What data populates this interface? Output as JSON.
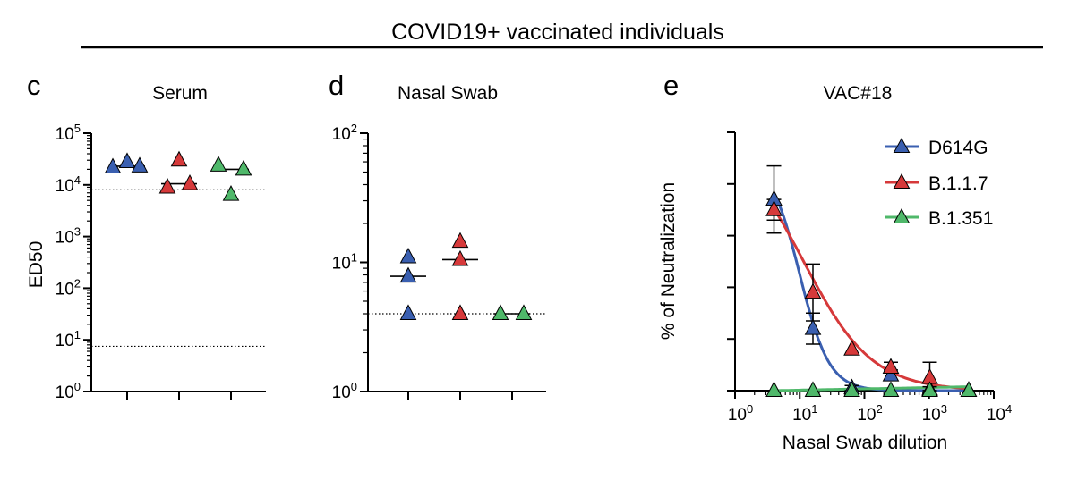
{
  "figure": {
    "header": "COVID19+ vaccinated individuals"
  },
  "colors": {
    "D614G": "#3a5fb0",
    "B.1.1.7": "#d6393a",
    "B.1.351": "#4fb86a",
    "axis": "#000000"
  },
  "chart_data": [
    {
      "panel_label": "c",
      "type": "scatter",
      "title": "Serum",
      "ylabel": "ED50",
      "xlabel": "",
      "yscale": "log",
      "ylim": [
        1,
        100000
      ],
      "yticks": [
        {
          "value": 1,
          "base": "10",
          "exp": "0"
        },
        {
          "value": 10,
          "base": "10",
          "exp": "1"
        },
        {
          "value": 100,
          "base": "10",
          "exp": "2"
        },
        {
          "value": 1000,
          "base": "10",
          "exp": "3"
        },
        {
          "value": 10000,
          "base": "10",
          "exp": "4"
        },
        {
          "value": 100000,
          "base": "10",
          "exp": "5"
        }
      ],
      "categories": [
        "D614G",
        "B.1.1.7",
        "B.1.351"
      ],
      "series": [
        {
          "category": "D614G",
          "values": [
            22000,
            28000,
            23000
          ],
          "median": 23000
        },
        {
          "category": "B.1.1.7",
          "values": [
            9000,
            30000,
            10500
          ],
          "median": 10500
        },
        {
          "category": "B.1.351",
          "values": [
            24000,
            6500,
            20000
          ],
          "median": 20000
        }
      ],
      "reference_lines": [
        8000,
        7.5
      ],
      "legend": false,
      "grid": false
    },
    {
      "panel_label": "d",
      "type": "scatter",
      "title": "Nasal Swab",
      "ylabel": "",
      "xlabel": "",
      "yscale": "log",
      "ylim": [
        1,
        100
      ],
      "yticks": [
        {
          "value": 1,
          "base": "10",
          "exp": "0"
        },
        {
          "value": 10,
          "base": "10",
          "exp": "1"
        },
        {
          "value": 100,
          "base": "10",
          "exp": "2"
        }
      ],
      "categories": [
        "D614G",
        "B.1.1.7",
        "B.1.351"
      ],
      "series": [
        {
          "category": "D614G",
          "values": [
            11,
            7.8,
            4
          ],
          "median": 7.8
        },
        {
          "category": "B.1.1.7",
          "values": [
            14.5,
            10.5,
            4
          ],
          "median": 10.5
        },
        {
          "category": "B.1.351",
          "values": [
            4,
            4
          ],
          "median": 4
        }
      ],
      "reference_lines": [
        4
      ],
      "legend": false,
      "grid": false
    },
    {
      "panel_label": "e",
      "type": "line",
      "title": "VAC#18",
      "xlabel": "Nasal Swab dilution",
      "ylabel": "% of Neutralization",
      "xscale": "log",
      "xlim": [
        1,
        10000
      ],
      "ylim": [
        0,
        100
      ],
      "xticks": [
        {
          "value": 1,
          "base": "10",
          "exp": "0"
        },
        {
          "value": 10,
          "base": "10",
          "exp": "1"
        },
        {
          "value": 100,
          "base": "10",
          "exp": "2"
        },
        {
          "value": 1000,
          "base": "10",
          "exp": "3"
        },
        {
          "value": 10000,
          "base": "10",
          "exp": "4"
        }
      ],
      "yticks": [
        "0",
        "20",
        "40",
        "60",
        "80",
        "100"
      ],
      "x": [
        4,
        16,
        64,
        256,
        1024,
        4096
      ],
      "series": [
        {
          "name": "D614G",
          "values": [
            74,
            24,
            1,
            6,
            0.5,
            0
          ],
          "error": [
            13,
            6,
            1,
            2,
            1,
            0
          ],
          "curve": {
            "top": 90,
            "ic50": 10,
            "hill": 1.9
          }
        },
        {
          "name": "B.1.1.7",
          "values": [
            70,
            38,
            16,
            9,
            5,
            0
          ],
          "error": [
            4,
            11,
            0,
            2,
            6,
            0
          ],
          "curve": {
            "top": 100,
            "ic50": 11.5,
            "hill": 0.82
          }
        },
        {
          "name": "B.1.351",
          "values": [
            0,
            0,
            0,
            0,
            0,
            0
          ],
          "error": [
            0,
            0,
            0,
            0,
            0,
            0
          ],
          "curve": {
            "flat_start": 0,
            "flat_end": 1.5
          }
        }
      ],
      "legend_position": "top-right",
      "legend": true,
      "grid": false
    }
  ]
}
